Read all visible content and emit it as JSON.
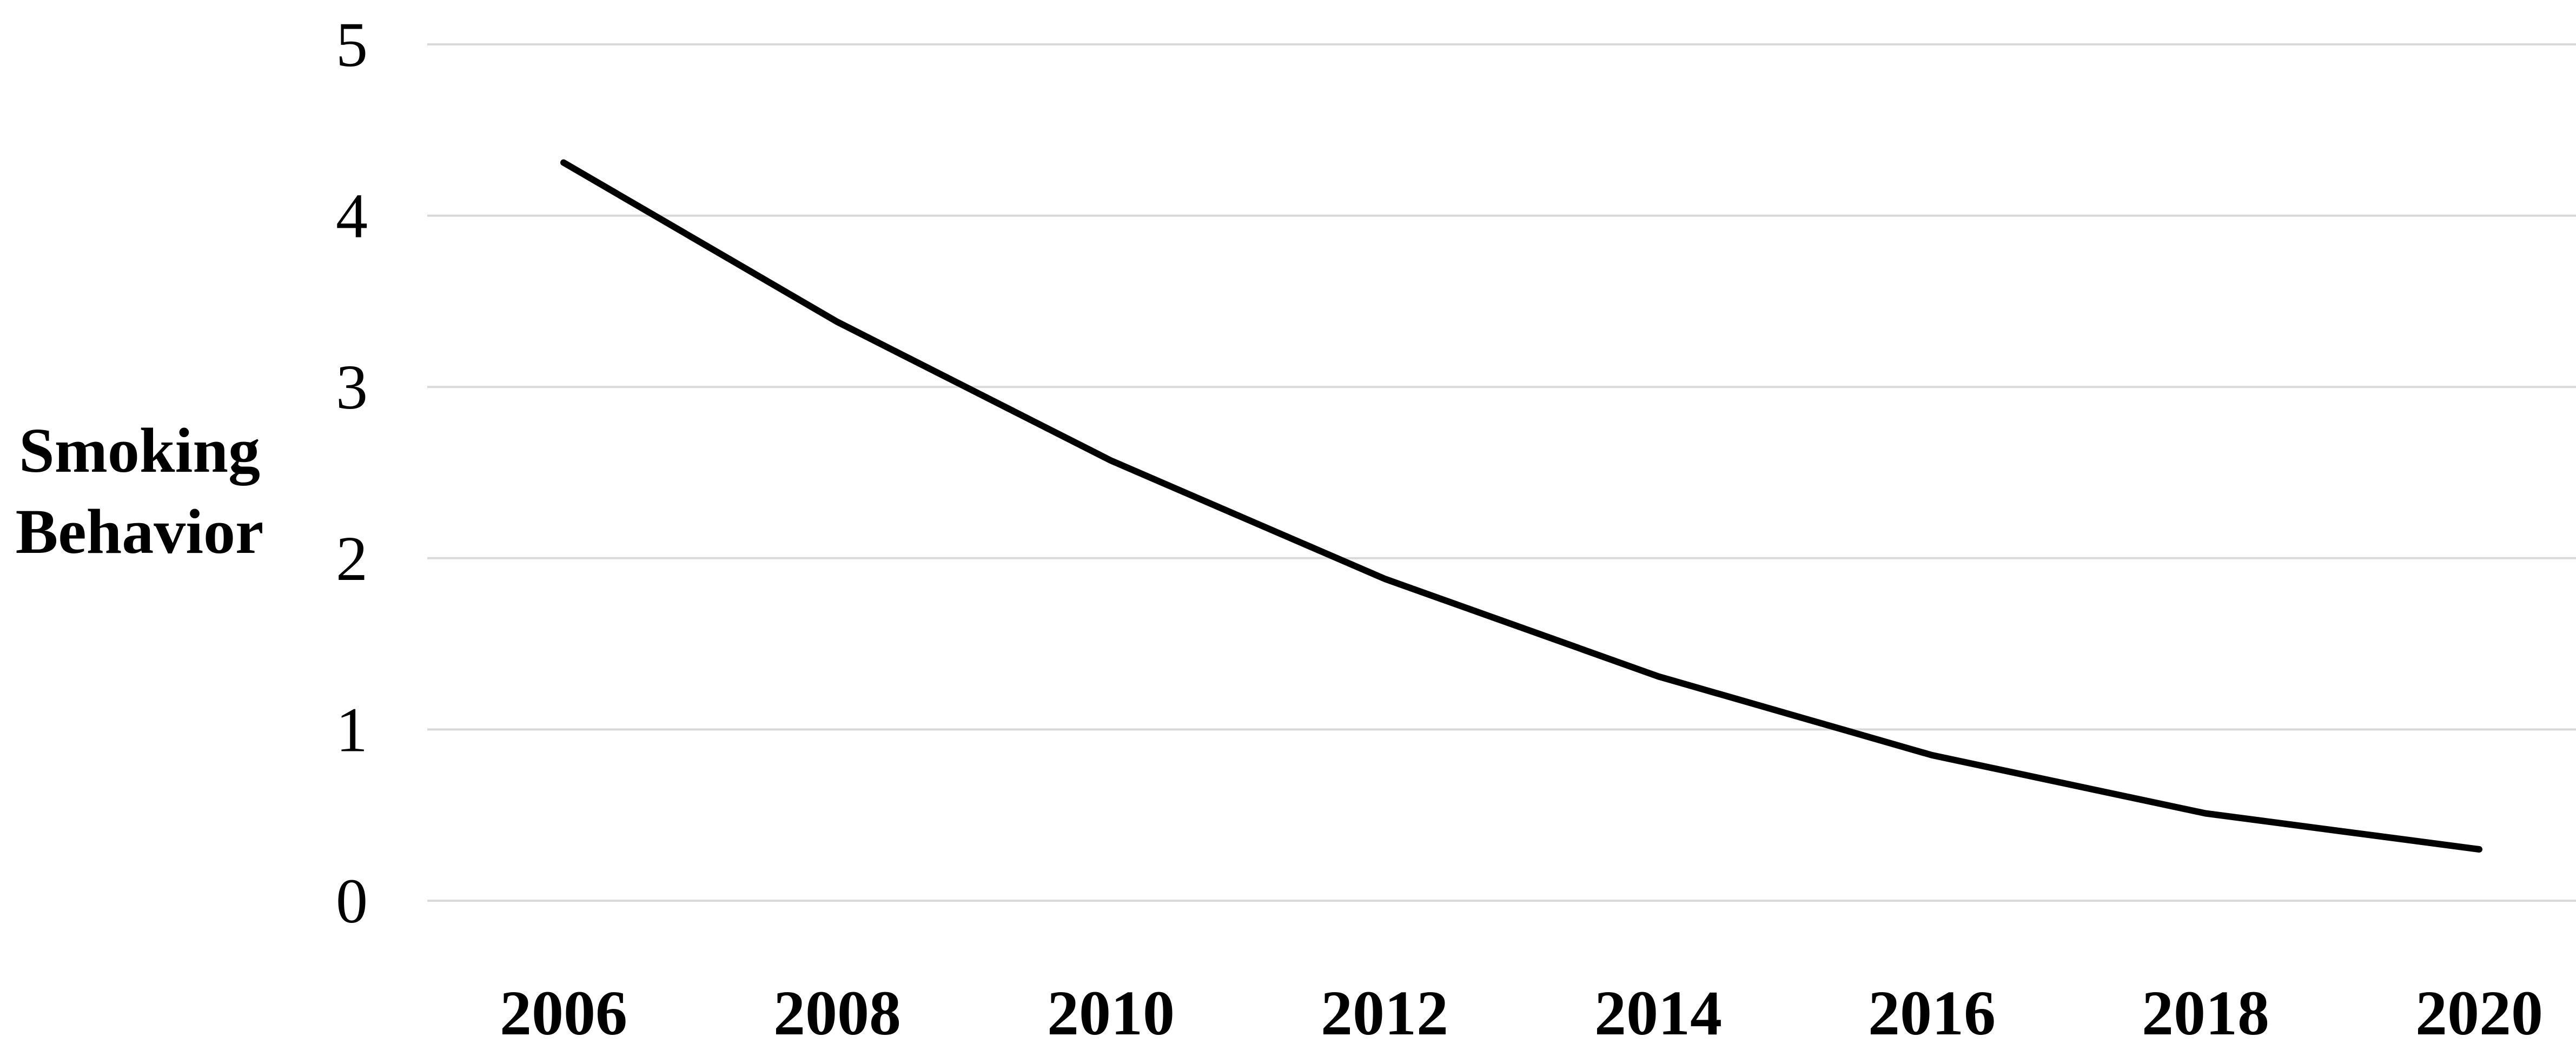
{
  "chart_data": {
    "type": "line",
    "title": "",
    "xlabel": "",
    "ylabel": [
      "Smoking",
      "Behavior"
    ],
    "ylim": [
      0,
      5
    ],
    "yticks": [
      "0",
      "1",
      "2",
      "3",
      "4",
      "5"
    ],
    "grid": true,
    "legend": "none",
    "x": [
      "2006",
      "2008",
      "2010",
      "2012",
      "2014",
      "2016",
      "2018",
      "2020"
    ],
    "series": [
      {
        "values": [
          4.31,
          3.38,
          2.57,
          1.88,
          1.31,
          0.85,
          0.51,
          0.3
        ],
        "color": "#000000"
      }
    ]
  }
}
